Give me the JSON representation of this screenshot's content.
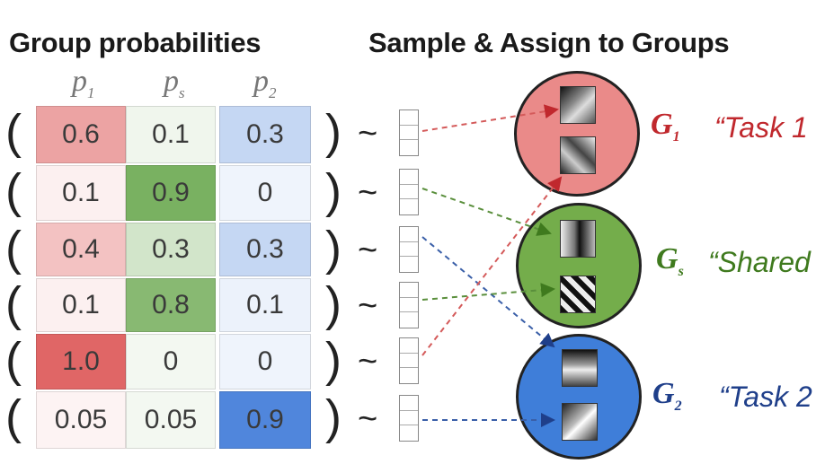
{
  "titles": {
    "left": "Group probabilities",
    "right": "Sample & Assign to Groups"
  },
  "columns": [
    {
      "symbol": "p",
      "sub": "1"
    },
    {
      "symbol": "p",
      "sub": "s"
    },
    {
      "symbol": "p",
      "sub": "2"
    }
  ],
  "rows": [
    {
      "values": [
        "0.6",
        "0.1",
        "0.3"
      ]
    },
    {
      "values": [
        "0.1",
        "0.9",
        "0"
      ]
    },
    {
      "values": [
        "0.4",
        "0.3",
        "0.3"
      ]
    },
    {
      "values": [
        "0.1",
        "0.8",
        "0.1"
      ]
    },
    {
      "values": [
        "1.0",
        "0",
        "0"
      ]
    },
    {
      "values": [
        "0.05",
        "0.05",
        "0.9"
      ]
    }
  ],
  "paren_open": "(",
  "paren_close": ")",
  "tilde": "~",
  "groups": [
    {
      "symbol": "G",
      "sub": "1",
      "name": "“Task 1",
      "color": "#c0282d",
      "fill": "#ea8a89"
    },
    {
      "symbol": "G",
      "sub": "s",
      "name": "“Shared",
      "color": "#3f7a1e",
      "fill": "#74ad4b"
    },
    {
      "symbol": "G",
      "sub": "2",
      "name": "“Task 2",
      "color": "#1f3f8a",
      "fill": "#3f7ed9"
    }
  ],
  "colors": {
    "task1": "#e06666",
    "shared": "#6aa84f",
    "task2": "#3c78d8"
  }
}
